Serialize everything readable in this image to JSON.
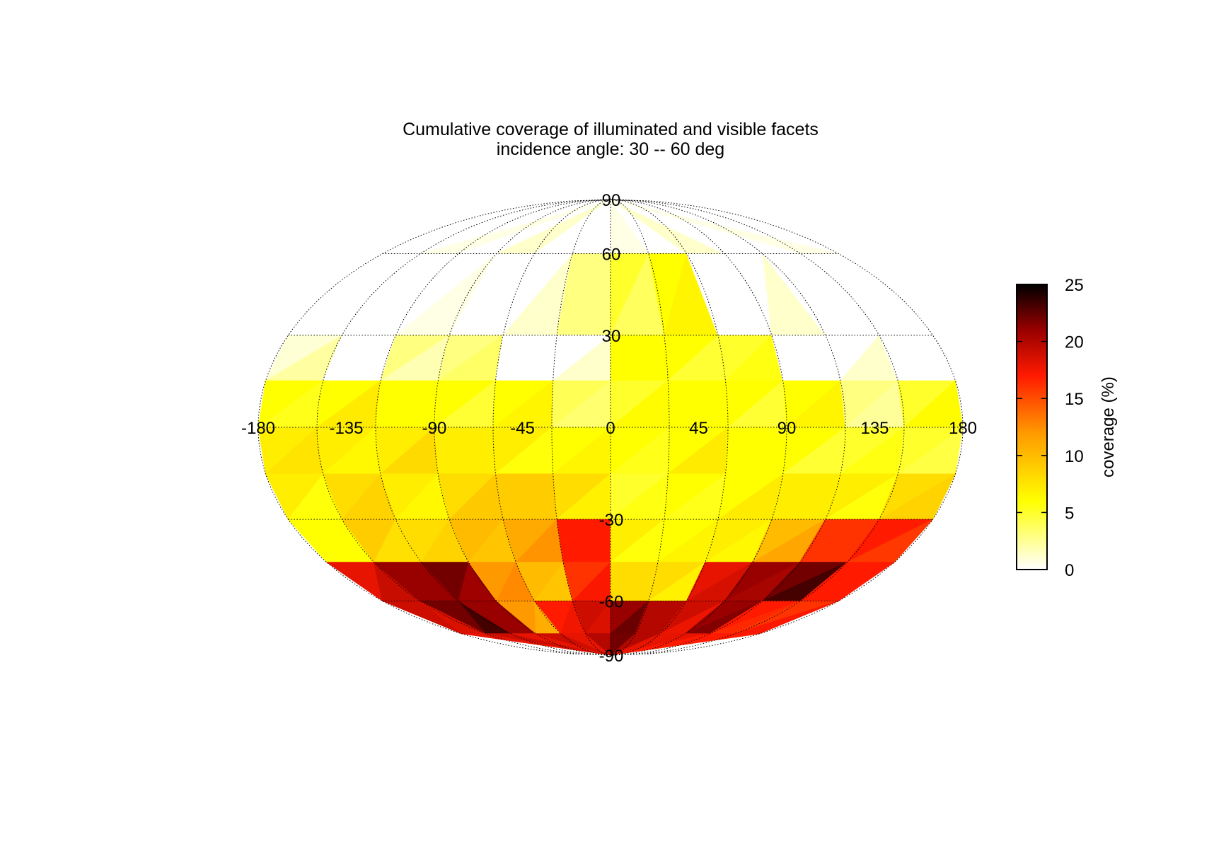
{
  "chart_data": {
    "type": "heatmap",
    "projection": "mollweide",
    "title": "Cumulative coverage of illuminated and visible facets",
    "subtitle": "incidence angle: 30 -- 60 deg",
    "lon_ticks": [
      -180,
      -135,
      -90,
      -45,
      0,
      45,
      90,
      135,
      180
    ],
    "lon_tick_labels": [
      "-180",
      "-135",
      "-90",
      "-45",
      "0",
      "45",
      "90",
      "135",
      "180"
    ],
    "lat_ticks": [
      90,
      60,
      30,
      -30,
      -60,
      -90
    ],
    "lat_tick_labels": [
      "90",
      "60",
      "30",
      "-30",
      "-60",
      "-90"
    ],
    "xlim": [
      -180,
      180
    ],
    "ylim": [
      -90,
      90
    ],
    "grid": true,
    "colorbar": {
      "label": "coverage (%)",
      "range": [
        0,
        25
      ],
      "ticks": [
        0,
        5,
        10,
        15,
        20,
        25
      ],
      "tick_labels": [
        "0",
        "5",
        "10",
        "15",
        "20",
        "25"
      ],
      "colormap": "hot_r",
      "placement": "right"
    },
    "colormap_stops": [
      {
        "v": 0,
        "color": "#ffffff"
      },
      {
        "v": 6,
        "color": "#ffff00"
      },
      {
        "v": 12,
        "color": "#ff9900"
      },
      {
        "v": 17,
        "color": "#ff1a00"
      },
      {
        "v": 21,
        "color": "#990000"
      },
      {
        "v": 25,
        "color": "#000000"
      }
    ],
    "lon_bands": [
      -180,
      -150,
      -120,
      -90,
      -60,
      -30,
      0,
      30,
      60,
      90,
      120,
      150,
      180
    ],
    "lat_bands": [
      {
        "lat_max": 90,
        "lat_min": 60,
        "values": [
          0,
          0,
          0,
          0,
          0,
          0,
          0,
          0,
          0,
          0,
          0,
          0
        ]
      },
      {
        "lat_max": 60,
        "lat_min": 30,
        "values": [
          0,
          0,
          0,
          0,
          0,
          3,
          5,
          6,
          0,
          0,
          0,
          0
        ]
      },
      {
        "lat_max": 30,
        "lat_min": 15,
        "values": [
          1,
          0,
          3,
          3,
          0,
          0,
          6,
          6,
          5,
          0,
          0,
          0
        ]
      },
      {
        "lat_max": 15,
        "lat_min": 0,
        "values": [
          6,
          6,
          6,
          6,
          6,
          4,
          5,
          6,
          6,
          6,
          3,
          5
        ]
      },
      {
        "lat_max": 0,
        "lat_min": -15,
        "values": [
          7,
          7,
          7,
          7,
          7,
          6,
          6,
          6,
          6,
          6,
          5,
          5
        ]
      },
      {
        "lat_max": -15,
        "lat_min": -30,
        "values": [
          7,
          8,
          7,
          8,
          9,
          8,
          5,
          6,
          6,
          7,
          7,
          8
        ]
      },
      {
        "lat_max": -30,
        "lat_min": -45,
        "values": [
          6,
          9,
          8,
          10,
          11,
          17,
          7,
          6,
          7,
          10,
          16,
          17
        ]
      },
      {
        "lat_max": -45,
        "lat_min": -60,
        "values": [
          18,
          21,
          22,
          12,
          10,
          16,
          8,
          8,
          18,
          21,
          22,
          17
        ]
      },
      {
        "lat_max": -60,
        "lat_min": -75,
        "values": [
          19,
          22,
          21,
          12,
          17,
          19,
          21,
          20,
          19,
          21,
          17,
          16
        ]
      },
      {
        "lat_max": -75,
        "lat_min": -90,
        "values": [
          18,
          19,
          18,
          19,
          18,
          20,
          22,
          20,
          18,
          18,
          17,
          17
        ]
      }
    ]
  }
}
